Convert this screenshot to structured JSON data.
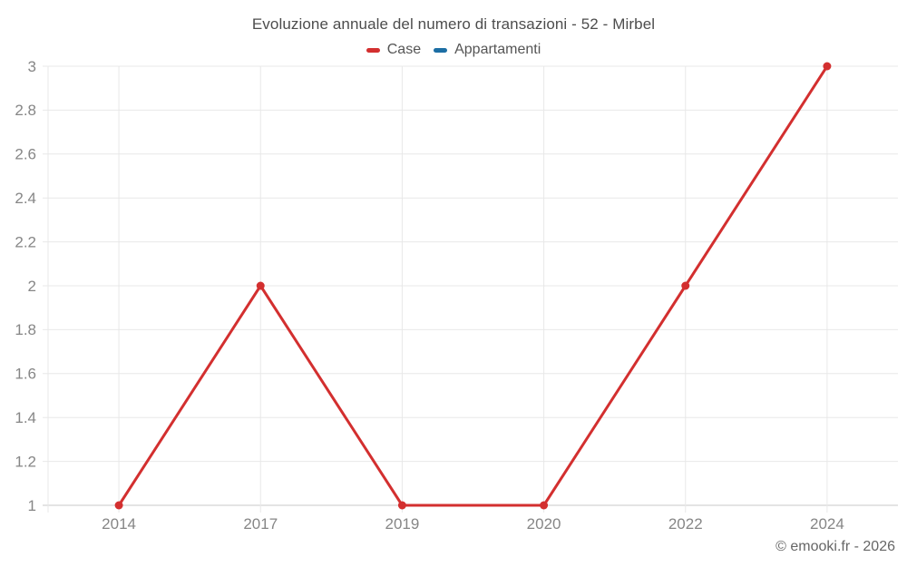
{
  "chart_data": {
    "type": "line",
    "title": "Evoluzione annuale del numero di transazioni - 52 - Mirbel",
    "categories": [
      "2014",
      "2017",
      "2019",
      "2020",
      "2022",
      "2024"
    ],
    "series": [
      {
        "name": "Case",
        "color": "#d32f2f",
        "values": [
          1,
          2,
          1,
          1,
          2,
          3
        ]
      },
      {
        "name": "Appartamenti",
        "color": "#1c6ea4",
        "values": []
      }
    ],
    "xlabel": "",
    "ylabel": "",
    "ylim": [
      1,
      3
    ],
    "yticks": [
      3,
      2.8,
      2.6,
      2.4,
      2.2,
      2,
      1.8,
      1.6,
      1.4,
      1.2,
      1
    ],
    "grid": true,
    "legend_position": "top",
    "colors": {
      "grid": "#e8e8e8",
      "axis": "#c9c9c9",
      "tick_label": "#868686"
    }
  },
  "footer": {
    "copyright": "© emooki.fr - 2026"
  }
}
